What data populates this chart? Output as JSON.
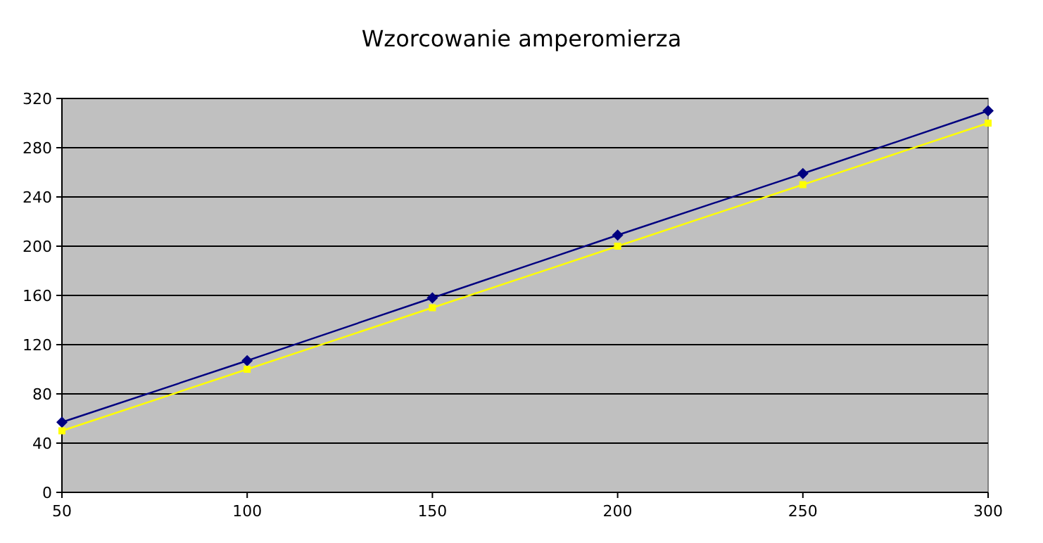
{
  "chart_data": {
    "type": "line",
    "title": "Wzorcowanie amperomierza",
    "x": [
      50,
      100,
      150,
      200,
      250,
      300
    ],
    "xlim": [
      50,
      300
    ],
    "xticks": [
      50,
      100,
      150,
      200,
      250,
      300
    ],
    "ylim": [
      0,
      320
    ],
    "yticks": [
      0,
      40,
      80,
      120,
      160,
      200,
      240,
      280,
      320
    ],
    "grid": "y",
    "line_style": "solid",
    "series": [
      {
        "color": "#000080",
        "marker": "diamond",
        "values": [
          57,
          107,
          158,
          209,
          259,
          310
        ]
      },
      {
        "color": "#ffff00",
        "marker": "square",
        "values": [
          50,
          100,
          150,
          200,
          250,
          300
        ]
      }
    ]
  }
}
